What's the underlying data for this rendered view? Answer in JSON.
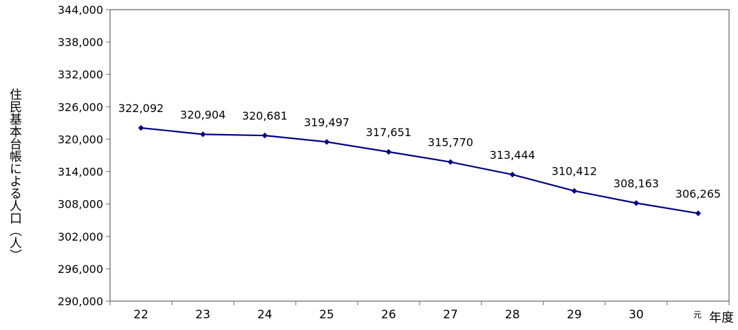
{
  "chart_data": {
    "type": "line",
    "title": "",
    "xlabel": "年度",
    "ylabel": "住民基本台帳による人口（人）",
    "categories": [
      "22",
      "23",
      "24",
      "25",
      "26",
      "27",
      "28",
      "29",
      "30",
      "元"
    ],
    "series": [
      {
        "values": [
          322092,
          320904,
          320681,
          319497,
          317651,
          315770,
          313444,
          310412,
          308163,
          306265
        ],
        "data_labels": [
          "322,092",
          "320,904",
          "320,681",
          "319,497",
          "317,651",
          "315,770",
          "313,444",
          "310,412",
          "308,163",
          "306,265"
        ],
        "color": "#000080",
        "marker": "diamond"
      }
    ],
    "ylim": [
      290000,
      344000
    ],
    "yticks": [
      290000,
      296000,
      302000,
      308000,
      314000,
      320000,
      326000,
      332000,
      338000,
      344000
    ],
    "ytick_labels": [
      "290,000",
      "296,000",
      "302,000",
      "308,000",
      "314,000",
      "320,000",
      "326,000",
      "332,000",
      "338,000",
      "344,000"
    ],
    "grid": false,
    "legend": "none"
  }
}
